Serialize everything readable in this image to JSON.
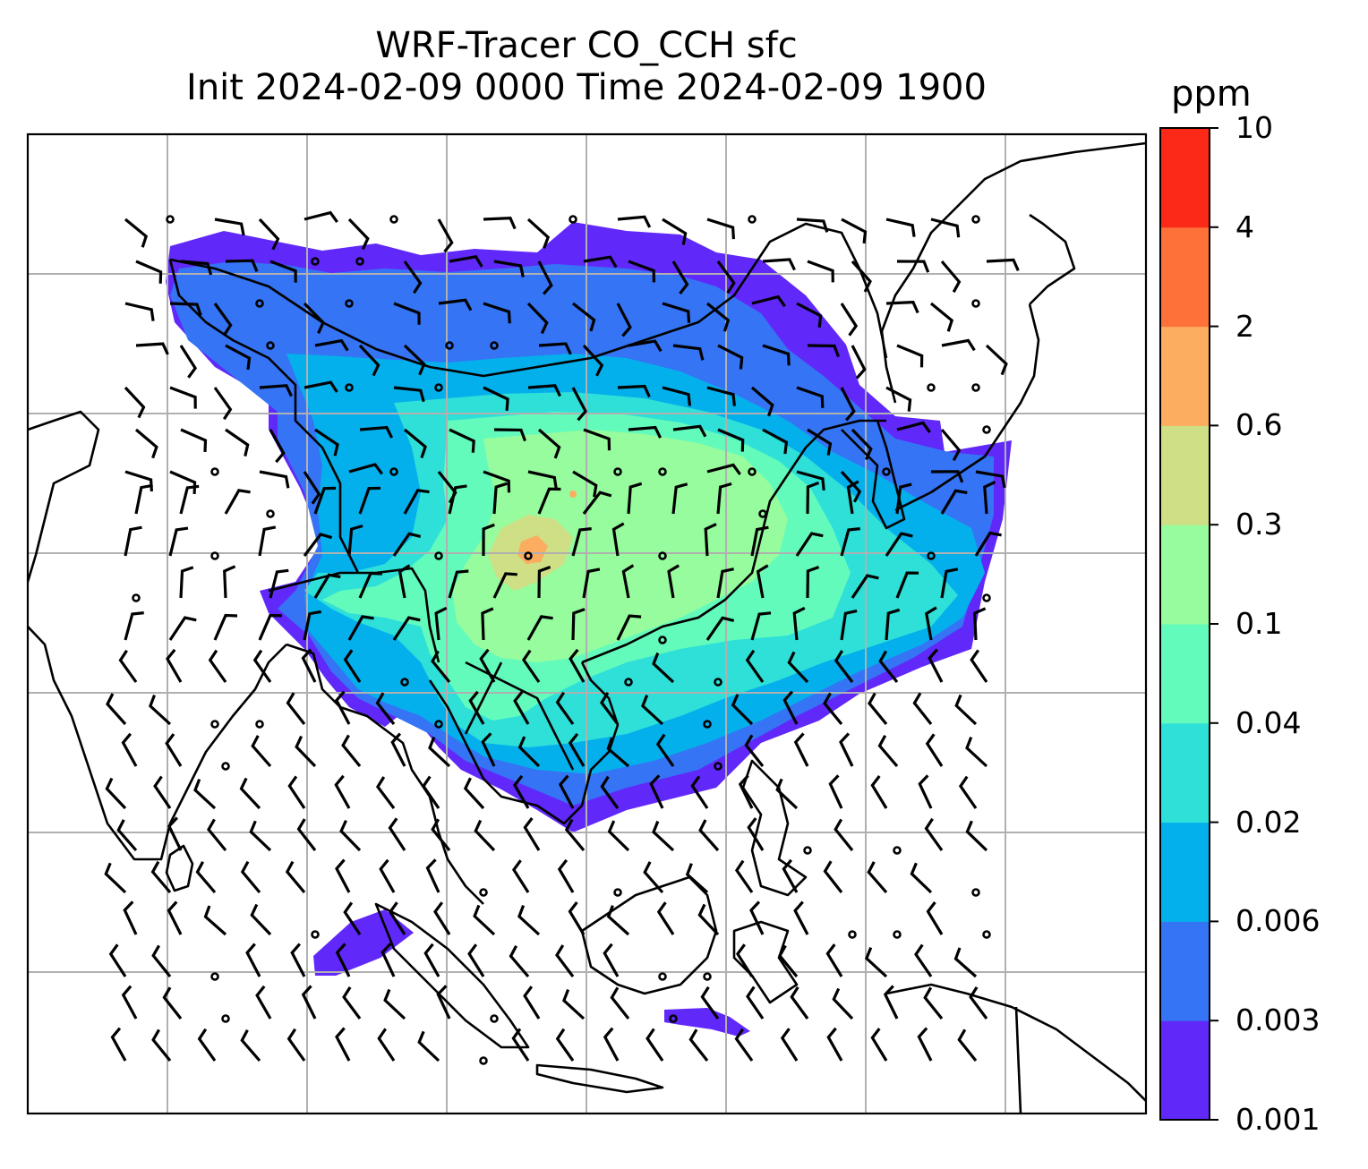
{
  "title": {
    "line1": "WRF-Tracer CO_CCH sfc",
    "line2": "Init 2024-02-09 0000 Time 2024-02-09 1900"
  },
  "colorbar": {
    "unit": "ppm",
    "levels": [
      "0.001",
      "0.003",
      "0.006",
      "0.02",
      "0.04",
      "0.1",
      "0.3",
      "0.6",
      "2",
      "4",
      "10"
    ],
    "colors": [
      "#6128fa",
      "#3574f4",
      "#04b0ec",
      "#2ee0d8",
      "#63fbbc",
      "#96fc9d",
      "#cedf86",
      "#fcad60",
      "#fe7139",
      "#fc2818"
    ]
  },
  "map": {
    "coastline_color": "#000000",
    "grid_color": "#b0b0b0",
    "barb_color": "#000000"
  }
}
